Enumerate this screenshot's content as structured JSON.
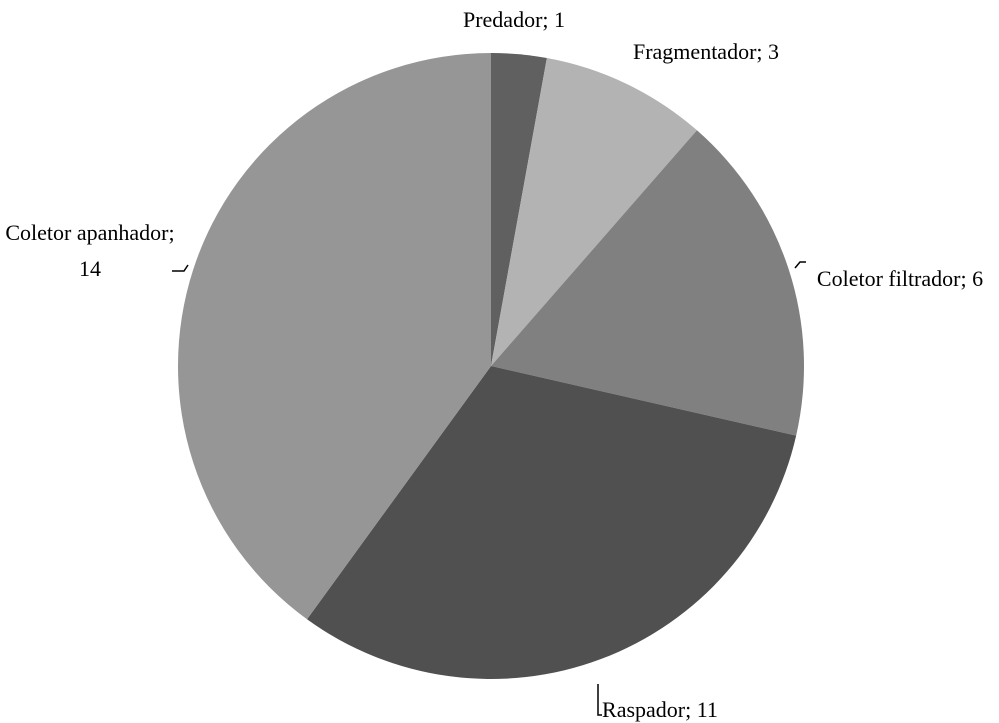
{
  "chart_data": {
    "type": "pie",
    "categories": [
      "Predador;",
      "Fragmentador;",
      "Coletor filtrador;",
      "Raspador;",
      "Coletor apanhador;"
    ],
    "values": [
      1,
      3,
      6,
      11,
      14
    ],
    "colors": [
      "#606060",
      "#b3b3b3",
      "#808080",
      "#505050",
      "#969696"
    ]
  }
}
